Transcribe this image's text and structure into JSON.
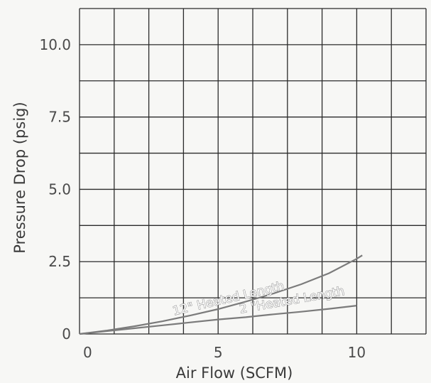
{
  "chart_data": {
    "type": "line",
    "title": "",
    "xlabel": "Air Flow (SCFM)",
    "ylabel": "Pressure Drop (psig)",
    "xlim": [
      0,
      12.5
    ],
    "ylim": [
      0,
      11.25
    ],
    "x_ticks": [
      {
        "value": 0,
        "label": "0"
      },
      {
        "value": 5,
        "label": "5"
      },
      {
        "value": 10,
        "label": "10"
      }
    ],
    "y_ticks": [
      {
        "value": 0,
        "label": "0"
      },
      {
        "value": 2.5,
        "label": "2.5"
      },
      {
        "value": 5,
        "label": "5.0"
      },
      {
        "value": 7.5,
        "label": "7.5"
      },
      {
        "value": 10,
        "label": "10.0"
      }
    ],
    "grid": true,
    "grid_step_x": 1.25,
    "grid_step_y": 1.25,
    "series": [
      {
        "name": "12\" Heated Length",
        "x": [
          0,
          1,
          2,
          3,
          4,
          5,
          6,
          7,
          8,
          9,
          10,
          10.2
        ],
        "y": [
          0,
          0.12,
          0.27,
          0.44,
          0.64,
          0.86,
          1.12,
          1.4,
          1.72,
          2.1,
          2.6,
          2.72
        ]
      },
      {
        "name": "2 \"Heated Length",
        "x": [
          0,
          1,
          2,
          3,
          4,
          5,
          6,
          7,
          8,
          9,
          10
        ],
        "y": [
          0,
          0.1,
          0.2,
          0.3,
          0.4,
          0.5,
          0.58,
          0.68,
          0.77,
          0.87,
          0.98
        ]
      }
    ],
    "colors": {
      "background": "#f7f7f5",
      "grid": "#2b2b2b",
      "series": "#7b7b7b",
      "text": "#3a3a3a"
    }
  }
}
